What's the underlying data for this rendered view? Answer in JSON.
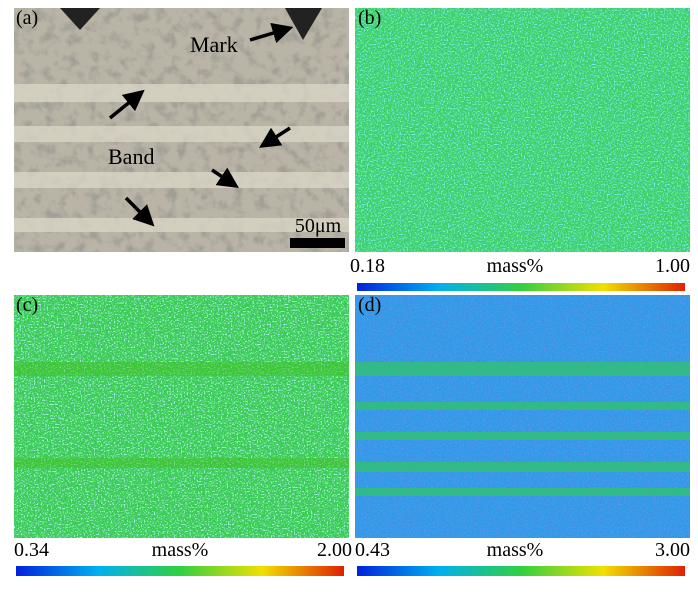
{
  "panels": [
    {
      "label": "(a)",
      "annotations": [
        "Mark",
        "Band"
      ],
      "scale_bar": "50μm"
    },
    {
      "label": "(b)",
      "colorbar": {
        "min": "0.18",
        "unit": "mass%",
        "max": "1.00"
      }
    },
    {
      "label": "(c)",
      "colorbar": {
        "min": "0.34",
        "unit": "mass%",
        "max": "2.00"
      }
    },
    {
      "label": "(d)",
      "colorbar": {
        "min": "0.43",
        "unit": "mass%",
        "max": "3.00"
      }
    }
  ]
}
